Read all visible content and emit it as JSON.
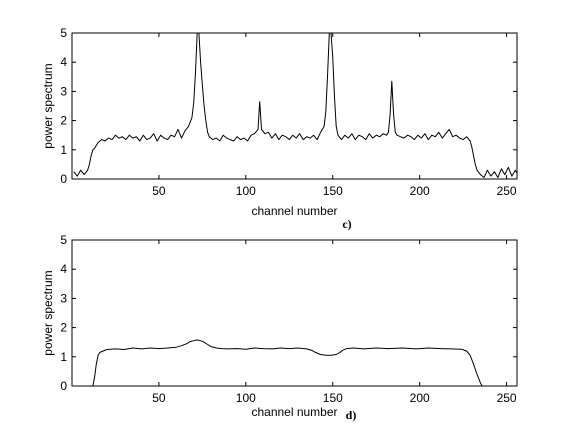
{
  "chart_data": [
    {
      "type": "line",
      "xlabel": "channel number",
      "ylabel": "power spectrum",
      "caption": "c)",
      "xlim": [
        0,
        256
      ],
      "ylim": [
        0,
        5
      ],
      "xticks": [
        "50",
        "100",
        "150",
        "200",
        "250"
      ],
      "yticks": [
        "0",
        "1",
        "2",
        "3",
        "4",
        "5"
      ],
      "grid": false,
      "series": [
        {
          "values": [
            [
              1,
              0.25
            ],
            [
              3,
              0.1
            ],
            [
              5,
              0.3
            ],
            [
              7,
              0.15
            ],
            [
              9,
              0.3
            ],
            [
              10,
              0.5
            ],
            [
              11,
              0.8
            ],
            [
              12,
              1.0
            ],
            [
              13,
              1.05
            ],
            [
              15,
              1.25
            ],
            [
              17,
              1.35
            ],
            [
              19,
              1.3
            ],
            [
              21,
              1.4
            ],
            [
              23,
              1.35
            ],
            [
              25,
              1.5
            ],
            [
              27,
              1.4
            ],
            [
              29,
              1.45
            ],
            [
              31,
              1.35
            ],
            [
              33,
              1.5
            ],
            [
              35,
              1.4
            ],
            [
              37,
              1.45
            ],
            [
              39,
              1.3
            ],
            [
              41,
              1.5
            ],
            [
              43,
              1.35
            ],
            [
              45,
              1.4
            ],
            [
              47,
              1.55
            ],
            [
              49,
              1.3
            ],
            [
              51,
              1.5
            ],
            [
              53,
              1.4
            ],
            [
              55,
              1.35
            ],
            [
              57,
              1.5
            ],
            [
              59,
              1.45
            ],
            [
              61,
              1.7
            ],
            [
              63,
              1.4
            ],
            [
              65,
              1.65
            ],
            [
              67,
              1.8
            ],
            [
              68,
              1.95
            ],
            [
              69,
              2.1
            ],
            [
              70,
              2.6
            ],
            [
              71,
              3.6
            ],
            [
              72,
              5.0
            ],
            [
              73,
              5.0
            ],
            [
              74,
              4.0
            ],
            [
              75,
              3.2
            ],
            [
              76,
              2.5
            ],
            [
              77,
              2.0
            ],
            [
              78,
              1.6
            ],
            [
              79,
              1.45
            ],
            [
              81,
              1.35
            ],
            [
              83,
              1.4
            ],
            [
              85,
              1.3
            ],
            [
              87,
              1.5
            ],
            [
              89,
              1.4
            ],
            [
              91,
              1.35
            ],
            [
              93,
              1.3
            ],
            [
              95,
              1.45
            ],
            [
              97,
              1.35
            ],
            [
              99,
              1.4
            ],
            [
              101,
              1.3
            ],
            [
              103,
              1.5
            ],
            [
              105,
              1.55
            ],
            [
              107,
              1.7
            ],
            [
              108,
              2.65
            ],
            [
              109,
              1.7
            ],
            [
              111,
              1.55
            ],
            [
              113,
              1.6
            ],
            [
              115,
              1.4
            ],
            [
              117,
              1.55
            ],
            [
              119,
              1.35
            ],
            [
              121,
              1.5
            ],
            [
              123,
              1.45
            ],
            [
              125,
              1.35
            ],
            [
              127,
              1.5
            ],
            [
              129,
              1.4
            ],
            [
              131,
              1.55
            ],
            [
              133,
              1.35
            ],
            [
              135,
              1.45
            ],
            [
              137,
              1.4
            ],
            [
              139,
              1.5
            ],
            [
              141,
              1.35
            ],
            [
              143,
              1.6
            ],
            [
              145,
              1.8
            ],
            [
              146,
              2.3
            ],
            [
              147,
              3.5
            ],
            [
              148,
              5.0
            ],
            [
              149,
              5.0
            ],
            [
              150,
              4.2
            ],
            [
              151,
              2.8
            ],
            [
              152,
              1.8
            ],
            [
              153,
              1.5
            ],
            [
              155,
              1.35
            ],
            [
              157,
              1.5
            ],
            [
              159,
              1.4
            ],
            [
              161,
              1.55
            ],
            [
              163,
              1.35
            ],
            [
              165,
              1.5
            ],
            [
              167,
              1.45
            ],
            [
              169,
              1.35
            ],
            [
              171,
              1.55
            ],
            [
              173,
              1.4
            ],
            [
              175,
              1.5
            ],
            [
              177,
              1.45
            ],
            [
              179,
              1.55
            ],
            [
              181,
              1.5
            ],
            [
              182,
              1.6
            ],
            [
              183,
              2.2
            ],
            [
              184,
              3.35
            ],
            [
              185,
              2.2
            ],
            [
              186,
              1.6
            ],
            [
              187,
              1.5
            ],
            [
              189,
              1.45
            ],
            [
              191,
              1.4
            ],
            [
              193,
              1.5
            ],
            [
              195,
              1.45
            ],
            [
              197,
              1.35
            ],
            [
              199,
              1.5
            ],
            [
              201,
              1.4
            ],
            [
              203,
              1.55
            ],
            [
              205,
              1.35
            ],
            [
              207,
              1.5
            ],
            [
              209,
              1.45
            ],
            [
              211,
              1.6
            ],
            [
              213,
              1.4
            ],
            [
              215,
              1.55
            ],
            [
              217,
              1.7
            ],
            [
              219,
              1.45
            ],
            [
              221,
              1.5
            ],
            [
              223,
              1.4
            ],
            [
              225,
              1.35
            ],
            [
              227,
              1.45
            ],
            [
              229,
              1.3
            ],
            [
              230,
              1.1
            ],
            [
              231,
              0.8
            ],
            [
              232,
              0.5
            ],
            [
              233,
              0.3
            ],
            [
              235,
              0.15
            ],
            [
              237,
              0.05
            ],
            [
              239,
              0.3
            ],
            [
              241,
              0.1
            ],
            [
              243,
              0.25
            ],
            [
              245,
              0.05
            ],
            [
              247,
              0.35
            ],
            [
              249,
              0.15
            ],
            [
              251,
              0.4
            ],
            [
              253,
              0.1
            ],
            [
              255,
              0.3
            ],
            [
              256,
              0.2
            ]
          ]
        }
      ]
    },
    {
      "type": "line",
      "xlabel": "channel number",
      "ylabel": "power spectrum",
      "caption": "d)",
      "xlim": [
        0,
        256
      ],
      "ylim": [
        0,
        5
      ],
      "xticks": [
        "50",
        "100",
        "150",
        "200",
        "250"
      ],
      "yticks": [
        "0",
        "1",
        "2",
        "3",
        "4",
        "5"
      ],
      "grid": false,
      "series": [
        {
          "values": [
            [
              12,
              0.0
            ],
            [
              13,
              0.3
            ],
            [
              14,
              0.75
            ],
            [
              15,
              1.05
            ],
            [
              16,
              1.15
            ],
            [
              18,
              1.2
            ],
            [
              20,
              1.25
            ],
            [
              25,
              1.27
            ],
            [
              30,
              1.25
            ],
            [
              35,
              1.3
            ],
            [
              40,
              1.27
            ],
            [
              45,
              1.3
            ],
            [
              50,
              1.28
            ],
            [
              55,
              1.3
            ],
            [
              60,
              1.33
            ],
            [
              63,
              1.38
            ],
            [
              66,
              1.45
            ],
            [
              68,
              1.52
            ],
            [
              70,
              1.55
            ],
            [
              72,
              1.58
            ],
            [
              74,
              1.55
            ],
            [
              76,
              1.5
            ],
            [
              78,
              1.42
            ],
            [
              80,
              1.35
            ],
            [
              83,
              1.3
            ],
            [
              86,
              1.28
            ],
            [
              90,
              1.27
            ],
            [
              95,
              1.28
            ],
            [
              100,
              1.26
            ],
            [
              105,
              1.3
            ],
            [
              110,
              1.28
            ],
            [
              115,
              1.27
            ],
            [
              120,
              1.3
            ],
            [
              125,
              1.28
            ],
            [
              130,
              1.3
            ],
            [
              135,
              1.27
            ],
            [
              138,
              1.22
            ],
            [
              140,
              1.15
            ],
            [
              143,
              1.08
            ],
            [
              146,
              1.05
            ],
            [
              149,
              1.05
            ],
            [
              152,
              1.08
            ],
            [
              154,
              1.15
            ],
            [
              156,
              1.23
            ],
            [
              158,
              1.28
            ],
            [
              162,
              1.3
            ],
            [
              168,
              1.27
            ],
            [
              175,
              1.3
            ],
            [
              182,
              1.28
            ],
            [
              190,
              1.3
            ],
            [
              198,
              1.27
            ],
            [
              205,
              1.3
            ],
            [
              212,
              1.28
            ],
            [
              218,
              1.27
            ],
            [
              224,
              1.26
            ],
            [
              227,
              1.2
            ],
            [
              229,
              1.05
            ],
            [
              231,
              0.75
            ],
            [
              233,
              0.4
            ],
            [
              235,
              0.1
            ],
            [
              236,
              0.0
            ]
          ]
        }
      ]
    }
  ]
}
